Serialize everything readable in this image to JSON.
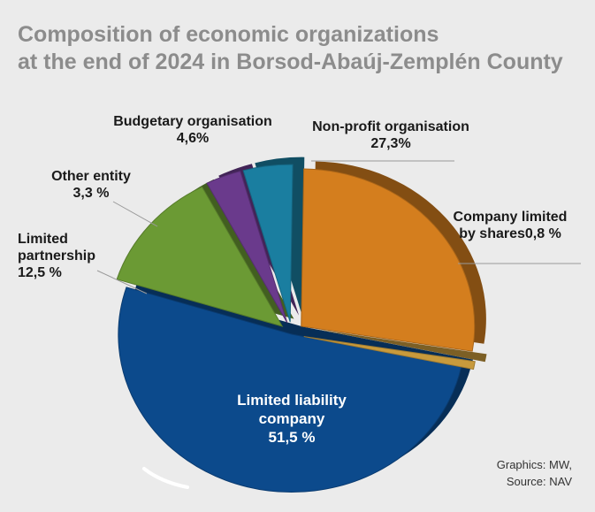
{
  "title": {
    "line1": "Composition of economic organizations",
    "line2": "at the end of 2024 in Borsod-Abaúj-Zemplén County"
  },
  "chart_data": {
    "type": "pie",
    "title": "Composition of economic organizations at the end of 2024 in Borsod-Abaúj-Zemplén County",
    "slices": [
      {
        "label": "Limited liability company",
        "value": 51.5,
        "display": "51,5 %",
        "color": "#0c4a8c",
        "exploded": false
      },
      {
        "label": "Limited partnership",
        "value": 12.5,
        "display": "12,5 %",
        "color": "#6b9a34",
        "exploded": true
      },
      {
        "label": "Other entity",
        "value": 3.3,
        "display": "3,3 %",
        "color": "#6a3a8c",
        "exploded": true
      },
      {
        "label": "Budgetary organisation",
        "value": 4.6,
        "display": "4,6%",
        "color": "#1a7ea0",
        "exploded": true
      },
      {
        "label": "Non-profit organisation",
        "value": 27.3,
        "display": "27,3%",
        "color": "#d47e1e",
        "exploded": true
      },
      {
        "label": "Company limited by shares",
        "value": 0.8,
        "display": "0,8 %",
        "color": "#c89a3c",
        "exploded": true
      }
    ]
  },
  "labels": {
    "llc": [
      "Limited liability",
      "company",
      "51,5 %"
    ],
    "ltd_part": [
      "Limited",
      "partnership",
      "12,5 %"
    ],
    "other": [
      "Other entity",
      "3,3 %"
    ],
    "budget": [
      "Budgetary organisation",
      "4,6%"
    ],
    "nonprofit": [
      "Non-profit organisation",
      "27,3%"
    ],
    "shares": [
      "Company limited",
      "by shares0,8 %"
    ]
  },
  "credits": [
    "Graphics: MW,",
    "Source: NAV"
  ]
}
